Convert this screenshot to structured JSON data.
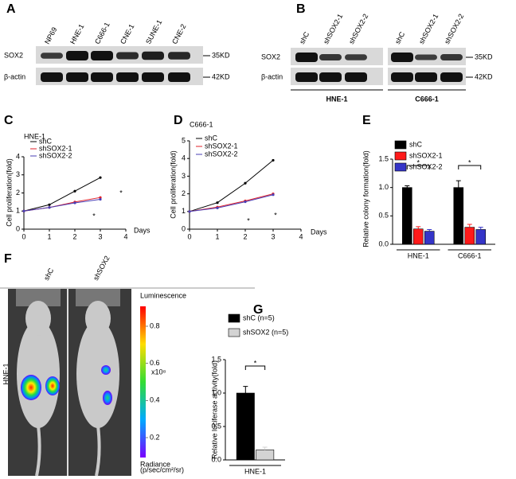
{
  "blots": {
    "A": {
      "panel": "A",
      "lanes": [
        "NP69",
        "HNE-1",
        "C666-1",
        "CNE-1",
        "SUNE-1",
        "CNE-2"
      ],
      "rows": [
        "SOX2",
        "β-actin"
      ],
      "markers": [
        "35KD",
        "42KD"
      ]
    },
    "B": {
      "panel": "B",
      "lanes": [
        "shC",
        "shSOX2-1",
        "shSOX2-2",
        "shC",
        "shSOX2-1",
        "shSOX2-2"
      ],
      "rows": [
        "SOX2",
        "β-actin"
      ],
      "markers": [
        "35KD",
        "42KD"
      ],
      "groups": [
        "HNE-1",
        "C666-1"
      ]
    }
  },
  "chart_data": [
    {
      "type": "line",
      "panel": "C",
      "title": "HNE-1",
      "y_label": "Cell proliferation(fold)",
      "x_label": "Days",
      "x": [
        0,
        1,
        2,
        3
      ],
      "xlim": [
        0,
        4
      ],
      "xticks": [
        0,
        1,
        2,
        3,
        4
      ],
      "ylim": [
        0,
        4
      ],
      "yticks": [
        0,
        1,
        2,
        3,
        4
      ],
      "series": [
        {
          "name": "shC",
          "color": "#000000",
          "values": [
            1,
            1.35,
            2.1,
            2.85
          ]
        },
        {
          "name": "shSOX2-1",
          "color": "#e0202a",
          "values": [
            1,
            1.2,
            1.5,
            1.75
          ]
        },
        {
          "name": "shSOX2-2",
          "color": "#4a3fb5",
          "values": [
            1,
            1.2,
            1.45,
            1.65
          ]
        }
      ],
      "annotations": [
        "*",
        "*"
      ]
    },
    {
      "type": "line",
      "panel": "D",
      "title": "C666-1",
      "y_label": "Cell proliferation(fold)",
      "x_label": "Days",
      "x": [
        0,
        1,
        2,
        3
      ],
      "xlim": [
        0,
        4
      ],
      "xticks": [
        0,
        1,
        2,
        3,
        4
      ],
      "ylim": [
        0,
        5
      ],
      "yticks": [
        0,
        1,
        2,
        3,
        4,
        5
      ],
      "series": [
        {
          "name": "shC",
          "color": "#000000",
          "values": [
            1,
            1.5,
            2.6,
            3.9
          ]
        },
        {
          "name": "shSOX2-1",
          "color": "#e0202a",
          "values": [
            1,
            1.25,
            1.6,
            2.0
          ]
        },
        {
          "name": "shSOX2-2",
          "color": "#4a3fb5",
          "values": [
            1,
            1.2,
            1.55,
            1.95
          ]
        }
      ],
      "annotations": [
        "*",
        "*"
      ]
    },
    {
      "type": "bar",
      "panel": "E",
      "y_label": "Relative colony formation(fold)",
      "categories": [
        "HNE-1",
        "C666-1"
      ],
      "ylim": [
        0,
        1.5
      ],
      "yticks": [
        {
          "value": 0,
          "label": "0.0"
        },
        0.5,
        {
          "value": 1,
          "label": "1.0"
        },
        1.5
      ],
      "series": [
        {
          "name": "shC",
          "color": "#000000",
          "values": [
            1.0,
            1.0
          ],
          "errors": [
            0.03,
            0.12
          ]
        },
        {
          "name": "shSOX2-1",
          "color": "#ff1a1a",
          "values": [
            0.27,
            0.3
          ],
          "errors": [
            0.04,
            0.05
          ]
        },
        {
          "name": "shSOX2-2",
          "color": "#3535c8",
          "values": [
            0.23,
            0.26
          ],
          "errors": [
            0.03,
            0.04
          ]
        }
      ],
      "annotations": [
        "*",
        "*"
      ]
    },
    {
      "type": "bar",
      "panel": "G",
      "y_label": "Relative luciferase activity(fold)",
      "categories": [
        "HNE-1"
      ],
      "ylim": [
        0,
        1.5
      ],
      "yticks": [
        {
          "value": 0,
          "label": "0.0"
        },
        0.5,
        {
          "value": 1,
          "label": "1.0"
        },
        1.5
      ],
      "series": [
        {
          "name": "shC (n=5)",
          "color": "#000000",
          "values": [
            1.0
          ],
          "errors": [
            0.1
          ]
        },
        {
          "name": "shSOX2 (n=5)",
          "color": "#d3d3d3",
          "values": [
            0.15
          ],
          "errors": [
            0.04
          ]
        }
      ],
      "annotations": [
        "*"
      ]
    }
  ],
  "imaging": {
    "panel": "F",
    "columns": [
      "shC",
      "shSOX2"
    ],
    "row_label": "HNE-1",
    "scale_title": "Luminescence",
    "scale_unit": "x10⁸",
    "scale_ticks": [
      0.8,
      0.6,
      0.4,
      0.2
    ],
    "scale_footer": [
      "Radiance",
      "(p/sec/cm²/sr)"
    ]
  }
}
